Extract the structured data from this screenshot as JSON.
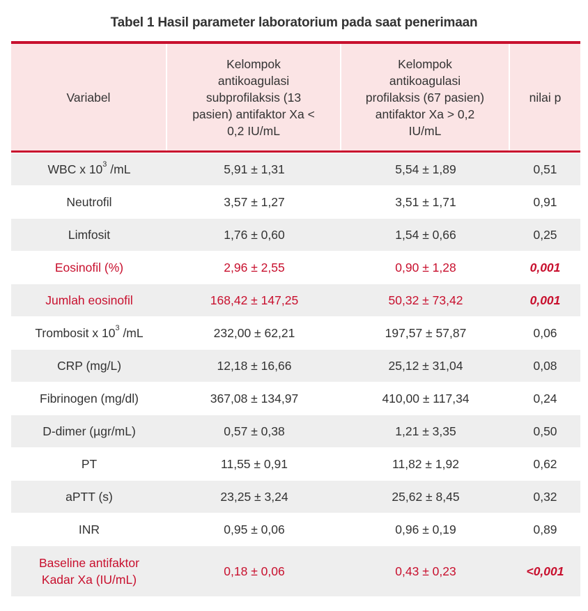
{
  "table": {
    "title": "Tabel 1 Hasil parameter laboratorium pada saat penerimaan",
    "headers": [
      "Variabel",
      "Kelompok antikoagulasi subprofilaksis (13 pasien) antifaktor Xa < 0,2 IU/mL",
      "Kelompok antikoagulasi profilaksis (67 pasien) antifaktor Xa > 0,2 IU/mL",
      "nilai p"
    ],
    "header_lines": {
      "col1": [
        "Kelompok",
        "antikoagulasi",
        "subprofilaksis (13",
        "pasien) antifaktor Xa <",
        "0,2 IU/mL"
      ],
      "col2": [
        "Kelompok",
        "antikoagulasi",
        "profilaksis (67 pasien)",
        "antifaktor Xa > 0,2",
        "IU/mL"
      ]
    },
    "rows": [
      {
        "variable": "WBC x 10",
        "sup": "3",
        "unit": " /mL",
        "sub": "5,91 ± 1,31",
        "pro": "5,54 ± 1,89",
        "p": "0,51"
      },
      {
        "variable": "Neutrofil",
        "sub": "3,57 ± 1,27",
        "pro": "3,51 ± 1,71",
        "p": "0,91"
      },
      {
        "variable": "Limfosit",
        "sub": "1,76 ± 0,60",
        "pro": "1,54 ± 0,66",
        "p": "0,25"
      },
      {
        "variable": "Eosinofil (%)",
        "sub": "2,96 ± 2,55",
        "pro": "0,90 ± 1,28",
        "p": "0,001"
      },
      {
        "variable": "Jumlah eosinofil",
        "sub": "168,42 ± 147,25",
        "pro": "50,32 ± 73,42",
        "p": "0,001"
      },
      {
        "variable": "Trombosit x 10",
        "sup": "3",
        "unit": " /mL",
        "sub": "232,00 ± 62,21",
        "pro": "197,57 ± 57,87",
        "p": "0,06"
      },
      {
        "variable": "CRP (mg/L)",
        "sub": "12,18 ± 16,66",
        "pro": "25,12 ± 31,04",
        "p": "0,08"
      },
      {
        "variable": "Fibrinogen (mg/dl)",
        "sub": "367,08 ± 134,97",
        "pro": "410,00 ± 117,34",
        "p": "0,24"
      },
      {
        "variable": "D-dimer (µgr/mL)",
        "sub": "0,57 ± 0,38",
        "pro": "1,21 ± 3,35",
        "p": "0,50"
      },
      {
        "variable": "PT",
        "sub": "11,55 ± 0,91",
        "pro": "11,82 ± 1,92",
        "p": "0,62"
      },
      {
        "variable": "aPTT (s)",
        "sub": "23,25 ± 3,24",
        "pro": "25,62 ± 8,45",
        "p": "0,32"
      },
      {
        "variable": "INR",
        "sub": "0,95 ± 0,06",
        "pro": "0,96 ± 0,19",
        "p": "0,89"
      },
      {
        "variable_lines": [
          "Baseline antifaktor",
          "Kadar Xa (IU/mL)"
        ],
        "sub": "0,18 ± 0,06",
        "pro": "0,43 ± 0,23",
        "p": "<0,001"
      }
    ]
  },
  "colors": {
    "accent_red": "#c8102e",
    "header_bg": "#fbe4e5",
    "alt_row_bg": "#eeeeee"
  }
}
